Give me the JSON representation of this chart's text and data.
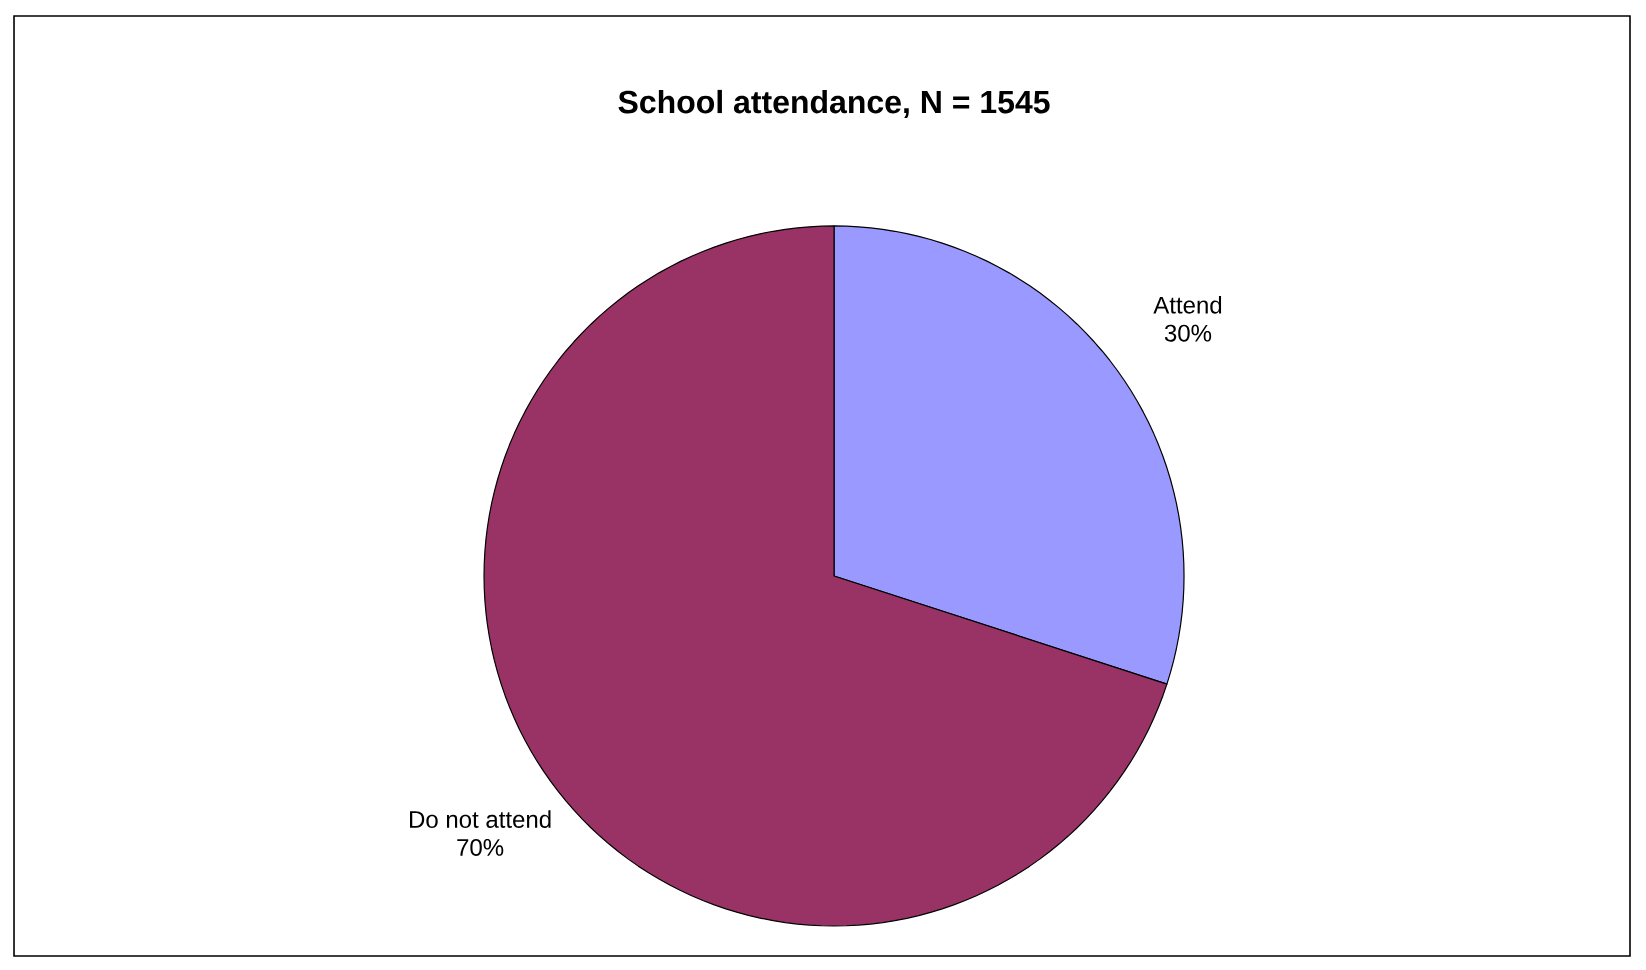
{
  "chart_data": {
    "type": "pie",
    "title": "School attendance, N = 1545",
    "categories": [
      "Attend",
      "Do not attend"
    ],
    "values": [
      30,
      70
    ],
    "colors": [
      "#9999ff",
      "#993366"
    ],
    "value_labels": [
      "30%",
      "70%"
    ]
  }
}
